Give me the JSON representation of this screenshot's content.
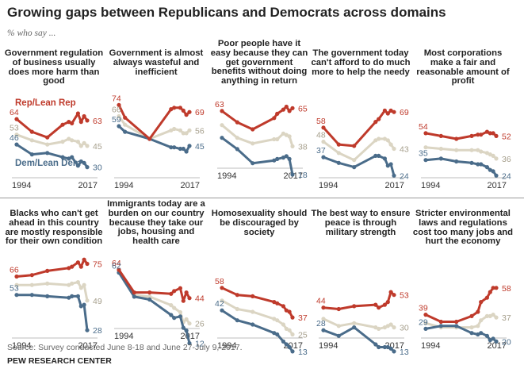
{
  "title": "Growing gaps between Republicans and Democrats across domains",
  "subtitle": "% who say ...",
  "legend": {
    "rep": "Rep/Lean Rep",
    "dem": "Dem/Lean Dem"
  },
  "source": "Source: Survey conducted June 8-18 and June 27-July 9, 2017.",
  "org": "PEW RESEARCH CENTER",
  "colors": {
    "rep": "#bf3a2b",
    "total": "#dbd5c3",
    "dem": "#4a6c8a",
    "label_total": "#a69f8c"
  },
  "x_start_label": "1994",
  "x_end_label": "2017",
  "chart_data": [
    {
      "type": "line",
      "title": "Government regulation of business usually does more harm than good",
      "x_range": [
        1994,
        2017
      ],
      "y_range": [
        0,
        100
      ],
      "x": [
        1994,
        1999,
        2004,
        2009,
        2011,
        2012,
        2014,
        2015,
        2016,
        2017
      ],
      "series": [
        {
          "name": "Rep/Lean Rep",
          "start_label": "64",
          "end_label": "63",
          "values": [
            64,
            55,
            51,
            60,
            62,
            61,
            68,
            62,
            66,
            63
          ]
        },
        {
          "start_label": "53",
          "end_label": "45",
          "values": [
            53,
            49,
            46,
            48,
            50,
            49,
            48,
            45,
            47,
            45
          ]
        },
        {
          "name": "Dem/Lean Dem",
          "start_label": "46",
          "end_label": "30",
          "values": [
            46,
            39,
            40,
            37,
            36,
            37,
            31,
            34,
            33,
            30
          ]
        }
      ]
    },
    {
      "type": "line",
      "title": "Government is almost always wasteful and inefficient",
      "x_range": [
        1994,
        2017
      ],
      "y_range": [
        0,
        100
      ],
      "x": [
        1994,
        1996,
        2004,
        2011,
        2012,
        2014,
        2015,
        2016,
        2017
      ],
      "series": [
        {
          "start_label": "74",
          "end_label": "69",
          "values": [
            74,
            65,
            50,
            71,
            72,
            72,
            70,
            67,
            69
          ]
        },
        {
          "start_label": "66",
          "end_label": "56",
          "values": [
            66,
            60,
            50,
            56,
            57,
            56,
            54,
            54,
            56
          ]
        },
        {
          "start_label": "59",
          "end_label": "45",
          "values": [
            59,
            55,
            50,
            44,
            44,
            43,
            43,
            41,
            45
          ]
        }
      ]
    },
    {
      "type": "line",
      "title": "Poor people have it easy because they can get government benefits without doing anything in return",
      "x_range": [
        1994,
        2017
      ],
      "y_range": [
        0,
        100
      ],
      "x": [
        1994,
        1999,
        2004,
        2011,
        2012,
        2014,
        2015,
        2016,
        2017
      ],
      "series": [
        {
          "start_label": "63",
          "end_label": "65",
          "values": [
            63,
            55,
            50,
            58,
            61,
            64,
            66,
            63,
            65
          ]
        },
        {
          "start_label": "",
          "end_label": "38",
          "values": [
            53,
            44,
            40,
            43,
            43,
            47,
            46,
            45,
            38
          ]
        },
        {
          "start_label": "",
          "end_label": "18",
          "values": [
            44,
            36,
            26,
            28,
            29,
            30,
            31,
            29,
            18
          ]
        }
      ]
    },
    {
      "type": "line",
      "title": "The government today can't afford to do much more to help the needy",
      "x_range": [
        1994,
        2017
      ],
      "y_range": [
        0,
        100
      ],
      "x": [
        1994,
        1999,
        2004,
        2011,
        2012,
        2014,
        2015,
        2016,
        2017
      ],
      "series": [
        {
          "start_label": "58",
          "end_label": "69",
          "values": [
            58,
            46,
            45,
            62,
            64,
            70,
            68,
            70,
            69
          ]
        },
        {
          "start_label": "48",
          "end_label": "43",
          "values": [
            48,
            40,
            35,
            49,
            50,
            50,
            49,
            46,
            43
          ]
        },
        {
          "start_label": "37",
          "end_label": "24",
          "values": [
            37,
            33,
            30,
            38,
            38,
            36,
            31,
            32,
            24
          ]
        }
      ]
    },
    {
      "type": "line",
      "title": "Most corporations make a fair and reasonable amount of profit",
      "x_range": [
        1994,
        2017
      ],
      "y_range": [
        0,
        100
      ],
      "x": [
        1994,
        1999,
        2004,
        2009,
        2011,
        2012,
        2014,
        2015,
        2016,
        2017
      ],
      "series": [
        {
          "start_label": "54",
          "end_label": "52",
          "values": [
            54,
            52,
            50,
            52,
            53,
            53,
            55,
            54,
            54,
            52
          ]
        },
        {
          "start_label": "",
          "end_label": "36",
          "values": [
            44,
            43,
            42,
            42,
            42,
            41,
            40,
            39,
            38,
            36
          ]
        },
        {
          "start_label": "35",
          "end_label": "24",
          "values": [
            35,
            36,
            34,
            33,
            32,
            32,
            30,
            28,
            27,
            24
          ]
        }
      ]
    },
    {
      "type": "line",
      "title": "Blacks who can't get ahead in this country are mostly responsible for their own condition",
      "x_range": [
        1994,
        2017
      ],
      "y_range": [
        0,
        100
      ],
      "x": [
        1994,
        1999,
        2004,
        2011,
        2012,
        2014,
        2015,
        2016,
        2017
      ],
      "series": [
        {
          "start_label": "66",
          "end_label": "75",
          "values": [
            66,
            67,
            70,
            72,
            73,
            76,
            73,
            78,
            75
          ]
        },
        {
          "start_label": "",
          "end_label": "49",
          "values": [
            60,
            60,
            61,
            60,
            61,
            62,
            58,
            60,
            49
          ]
        },
        {
          "start_label": "53",
          "end_label": "28",
          "values": [
            53,
            53,
            52,
            51,
            52,
            52,
            45,
            46,
            28
          ]
        }
      ]
    },
    {
      "type": "line",
      "title": "Immigrants today are a burden on our country because they take our jobs, housing and health care",
      "x_range": [
        1994,
        2017
      ],
      "y_range": [
        0,
        100
      ],
      "x": [
        1994,
        1999,
        2004,
        2011,
        2012,
        2014,
        2015,
        2016,
        2017
      ],
      "series": [
        {
          "start_label": "64",
          "end_label": "44",
          "values": [
            64,
            48,
            48,
            47,
            49,
            51,
            42,
            48,
            44
          ]
        },
        {
          "start_label": "",
          "end_label": "26",
          "values": [
            63,
            46,
            45,
            39,
            37,
            34,
            27,
            29,
            26
          ]
        },
        {
          "start_label": "62",
          "end_label": "12",
          "values": [
            62,
            45,
            43,
            32,
            30,
            31,
            23,
            21,
            12
          ]
        }
      ]
    },
    {
      "type": "line",
      "title": "Homosexuality should be discouraged by society",
      "x_range": [
        1994,
        2017
      ],
      "y_range": [
        0,
        100
      ],
      "x": [
        1994,
        1999,
        2004,
        2011,
        2012,
        2014,
        2015,
        2016,
        2017
      ],
      "series": [
        {
          "start_label": "58",
          "end_label": "37",
          "values": [
            58,
            53,
            52,
            48,
            47,
            45,
            42,
            41,
            37
          ]
        },
        {
          "start_label": "",
          "end_label": "25",
          "values": [
            49,
            43,
            41,
            36,
            35,
            32,
            29,
            28,
            25
          ]
        },
        {
          "start_label": "42",
          "end_label": "13",
          "values": [
            42,
            35,
            32,
            26,
            25,
            20,
            18,
            16,
            13
          ]
        }
      ]
    },
    {
      "type": "line",
      "title": "The best way to ensure peace is through military strength",
      "x_range": [
        1994,
        2017
      ],
      "y_range": [
        0,
        100
      ],
      "x": [
        1994,
        1999,
        2004,
        2011,
        2012,
        2014,
        2015,
        2016,
        2017
      ],
      "series": [
        {
          "start_label": "44",
          "end_label": "53",
          "values": [
            44,
            43,
            45,
            46,
            44,
            46,
            48,
            55,
            53
          ]
        },
        {
          "start_label": "",
          "end_label": "30",
          "values": [
            36,
            31,
            33,
            30,
            29,
            30,
            31,
            32,
            30
          ]
        },
        {
          "start_label": "28",
          "end_label": "13",
          "values": [
            28,
            24,
            30,
            18,
            16,
            16,
            16,
            15,
            13
          ]
        }
      ]
    },
    {
      "type": "line",
      "title": "Stricter environmental laws and regulations cost too many jobs and hurt the economy",
      "x_range": [
        1994,
        2017
      ],
      "y_range": [
        0,
        100
      ],
      "x": [
        1994,
        1999,
        2004,
        2009,
        2011,
        2012,
        2014,
        2015,
        2016,
        2017
      ],
      "series": [
        {
          "start_label": "39",
          "end_label": "58",
          "values": [
            39,
            34,
            34,
            38,
            41,
            48,
            51,
            55,
            58,
            58
          ]
        },
        {
          "start_label": "",
          "end_label": "37",
          "values": [
            33,
            30,
            30,
            30,
            31,
            35,
            38,
            38,
            39,
            37
          ]
        },
        {
          "start_label": "29",
          "end_label": "20",
          "values": [
            29,
            31,
            31,
            26,
            25,
            26,
            24,
            21,
            22,
            20
          ]
        }
      ]
    }
  ]
}
